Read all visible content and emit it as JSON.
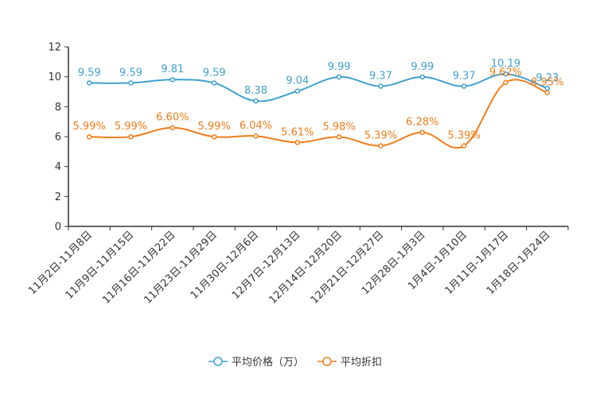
{
  "chart_data": {
    "type": "line",
    "title": "",
    "xlabel": "",
    "ylabel": "",
    "ylim": [
      0,
      12
    ],
    "yticks": [
      0,
      2,
      4,
      6,
      8,
      10,
      12
    ],
    "categories": [
      "11月2日-11月8日",
      "11月9日-11月15日",
      "11月16日-11月22日",
      "11月23日-11月29日",
      "11月30日-12月6日",
      "12月7日-12月13日",
      "12月14日-12月20日",
      "12月21日-12月27日",
      "12月28日-1月3日",
      "1月4日-1月10日",
      "1月11日-1月17日",
      "1月18日-1月24日"
    ],
    "series": [
      {
        "name": "平均价格（万）",
        "color": "#3fa0d0",
        "values": [
          9.59,
          9.59,
          9.81,
          9.59,
          8.38,
          9.04,
          9.99,
          9.37,
          9.99,
          9.37,
          10.19,
          9.23
        ],
        "labels": [
          "9.59",
          "9.59",
          "9.81",
          "9.59",
          "8.38",
          "9.04",
          "9.99",
          "9.37",
          "9.99",
          "9.37",
          "10.19",
          "9.23"
        ]
      },
      {
        "name": "平均折扣",
        "color": "#f07d1a",
        "values": [
          5.99,
          5.99,
          6.6,
          5.99,
          6.04,
          5.61,
          5.98,
          5.39,
          6.28,
          5.39,
          9.62,
          8.95
        ],
        "labels": [
          "5.99%",
          "5.99%",
          "6.60%",
          "5.99%",
          "6.04%",
          "5.61%",
          "5.98%",
          "5.39%",
          "6.28%",
          "5.39%",
          "9.62%",
          "8.95%"
        ]
      }
    ],
    "legend_position": "bottom-center",
    "grid": false
  }
}
